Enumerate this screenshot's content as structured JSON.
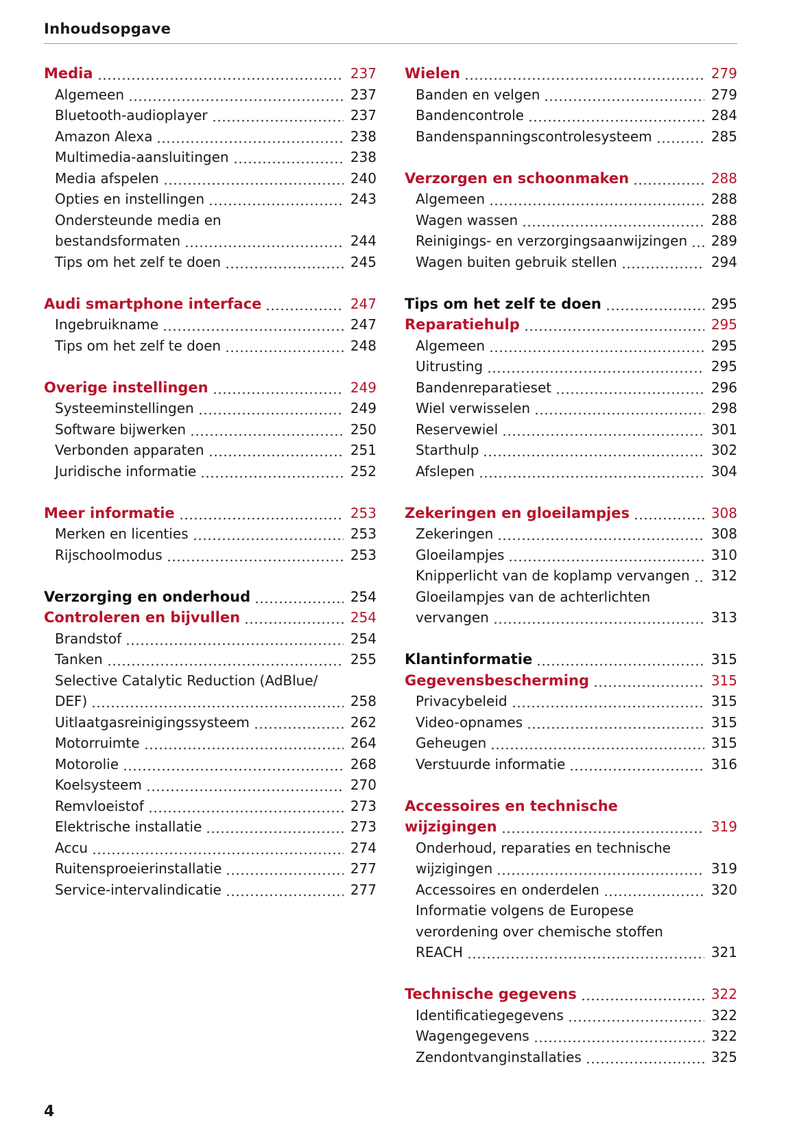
{
  "header": {
    "title": "Inhoudsopgave"
  },
  "columns": [
    {
      "groups": [
        {
          "entries": [
            {
              "style": "red",
              "lines": [
                "Media"
              ],
              "page": 237
            },
            {
              "style": "sub",
              "lines": [
                "Algemeen"
              ],
              "page": 237
            },
            {
              "style": "sub",
              "lines": [
                "Bluetooth-audioplayer"
              ],
              "page": 237
            },
            {
              "style": "sub",
              "lines": [
                "Amazon Alexa"
              ],
              "page": 238
            },
            {
              "style": "sub",
              "lines": [
                "Multimedia-aansluitingen"
              ],
              "page": 238
            },
            {
              "style": "sub",
              "lines": [
                "Media afspelen"
              ],
              "page": 240
            },
            {
              "style": "sub",
              "lines": [
                "Opties en instellingen"
              ],
              "page": 243
            },
            {
              "style": "sub",
              "lines": [
                "Ondersteunde media en",
                "bestandsformaten"
              ],
              "page": 244
            },
            {
              "style": "sub",
              "lines": [
                "Tips om het zelf te doen"
              ],
              "page": 245
            }
          ]
        },
        {
          "entries": [
            {
              "style": "red",
              "lines": [
                "Audi smartphone interface"
              ],
              "page": 247
            },
            {
              "style": "sub",
              "lines": [
                "Ingebruikname"
              ],
              "page": 247
            },
            {
              "style": "sub",
              "lines": [
                "Tips om het zelf te doen"
              ],
              "page": 248
            }
          ]
        },
        {
          "entries": [
            {
              "style": "red",
              "lines": [
                "Overige instellingen"
              ],
              "page": 249
            },
            {
              "style": "sub",
              "lines": [
                "Systeeminstellingen"
              ],
              "page": 249
            },
            {
              "style": "sub",
              "lines": [
                "Software bijwerken"
              ],
              "page": 250
            },
            {
              "style": "sub",
              "lines": [
                "Verbonden apparaten"
              ],
              "page": 251
            },
            {
              "style": "sub",
              "lines": [
                "Juridische informatie"
              ],
              "page": 252
            }
          ]
        },
        {
          "entries": [
            {
              "style": "red",
              "lines": [
                "Meer informatie"
              ],
              "page": 253
            },
            {
              "style": "sub",
              "lines": [
                "Merken en licenties"
              ],
              "page": 253
            },
            {
              "style": "sub",
              "lines": [
                "Rijschoolmodus"
              ],
              "page": 253
            }
          ]
        },
        {
          "entries": [
            {
              "style": "black",
              "lines": [
                "Verzorging en onderhoud"
              ],
              "page": 254
            },
            {
              "style": "red",
              "lines": [
                "Controleren en bijvullen"
              ],
              "page": 254
            },
            {
              "style": "sub",
              "lines": [
                "Brandstof"
              ],
              "page": 254
            },
            {
              "style": "sub",
              "lines": [
                "Tanken"
              ],
              "page": 255
            },
            {
              "style": "sub",
              "lines": [
                "Selective Catalytic Reduction (AdBlue/",
                "DEF)"
              ],
              "page": 258
            },
            {
              "style": "sub",
              "lines": [
                "Uitlaatgasreinigingssysteem"
              ],
              "page": 262
            },
            {
              "style": "sub",
              "lines": [
                "Motorruimte"
              ],
              "page": 264
            },
            {
              "style": "sub",
              "lines": [
                "Motorolie"
              ],
              "page": 268
            },
            {
              "style": "sub",
              "lines": [
                "Koelsysteem"
              ],
              "page": 270
            },
            {
              "style": "sub",
              "lines": [
                "Remvloeistof"
              ],
              "page": 273
            },
            {
              "style": "sub",
              "lines": [
                "Elektrische installatie"
              ],
              "page": 273
            },
            {
              "style": "sub",
              "lines": [
                "Accu"
              ],
              "page": 274
            },
            {
              "style": "sub",
              "lines": [
                "Ruitensproeierinstallatie"
              ],
              "page": 277
            },
            {
              "style": "sub",
              "lines": [
                "Service-intervalindicatie"
              ],
              "page": 277
            }
          ]
        }
      ]
    },
    {
      "groups": [
        {
          "entries": [
            {
              "style": "red",
              "lines": [
                "Wielen"
              ],
              "page": 279
            },
            {
              "style": "sub",
              "lines": [
                "Banden en velgen"
              ],
              "page": 279
            },
            {
              "style": "sub",
              "lines": [
                "Bandencontrole"
              ],
              "page": 284
            },
            {
              "style": "sub",
              "lines": [
                "Bandenspanningscontrolesysteem"
              ],
              "page": 285
            }
          ]
        },
        {
          "entries": [
            {
              "style": "red",
              "lines": [
                "Verzorgen en schoonmaken"
              ],
              "page": 288
            },
            {
              "style": "sub",
              "lines": [
                "Algemeen"
              ],
              "page": 288
            },
            {
              "style": "sub",
              "lines": [
                "Wagen wassen"
              ],
              "page": 288
            },
            {
              "style": "sub",
              "lines": [
                "Reinigings- en verzorgingsaanwijzingen"
              ],
              "page": 289
            },
            {
              "style": "sub",
              "lines": [
                "Wagen buiten gebruik stellen"
              ],
              "page": 294
            }
          ]
        },
        {
          "entries": [
            {
              "style": "black",
              "lines": [
                "Tips om het zelf te doen"
              ],
              "page": 295
            },
            {
              "style": "red",
              "lines": [
                "Reparatiehulp"
              ],
              "page": 295
            },
            {
              "style": "sub",
              "lines": [
                "Algemeen"
              ],
              "page": 295
            },
            {
              "style": "sub",
              "lines": [
                "Uitrusting"
              ],
              "page": 295
            },
            {
              "style": "sub",
              "lines": [
                "Bandenreparatieset"
              ],
              "page": 296
            },
            {
              "style": "sub",
              "lines": [
                "Wiel verwisselen"
              ],
              "page": 298
            },
            {
              "style": "sub",
              "lines": [
                "Reservewiel"
              ],
              "page": 301
            },
            {
              "style": "sub",
              "lines": [
                "Starthulp"
              ],
              "page": 302
            },
            {
              "style": "sub",
              "lines": [
                "Afslepen"
              ],
              "page": 304
            }
          ]
        },
        {
          "entries": [
            {
              "style": "red",
              "lines": [
                "Zekeringen en gloeilampjes"
              ],
              "page": 308
            },
            {
              "style": "sub",
              "lines": [
                "Zekeringen"
              ],
              "page": 308
            },
            {
              "style": "sub",
              "lines": [
                "Gloeilampjes"
              ],
              "page": 310
            },
            {
              "style": "sub",
              "lines": [
                "Knipperlicht van de koplamp vervangen"
              ],
              "page": 312
            },
            {
              "style": "sub",
              "lines": [
                "Gloeilampjes van de achterlichten",
                "vervangen"
              ],
              "page": 313
            }
          ]
        },
        {
          "entries": [
            {
              "style": "black",
              "lines": [
                "Klantinformatie"
              ],
              "page": 315
            },
            {
              "style": "red",
              "lines": [
                "Gegevensbescherming"
              ],
              "page": 315
            },
            {
              "style": "sub",
              "lines": [
                "Privacybeleid"
              ],
              "page": 315
            },
            {
              "style": "sub",
              "lines": [
                "Video-opnames"
              ],
              "page": 315
            },
            {
              "style": "sub",
              "lines": [
                "Geheugen"
              ],
              "page": 315
            },
            {
              "style": "sub",
              "lines": [
                "Verstuurde informatie"
              ],
              "page": 316
            }
          ]
        },
        {
          "entries": [
            {
              "style": "red",
              "lines": [
                "Accessoires en technische",
                "wijzigingen"
              ],
              "page": 319
            },
            {
              "style": "sub",
              "lines": [
                "Onderhoud, reparaties en technische",
                "wijzigingen"
              ],
              "page": 319
            },
            {
              "style": "sub",
              "lines": [
                "Accessoires en onderdelen"
              ],
              "page": 320
            },
            {
              "style": "sub",
              "lines": [
                "Informatie volgens de Europese",
                "verordening over chemische stoffen",
                "REACH"
              ],
              "page": 321
            }
          ]
        },
        {
          "entries": [
            {
              "style": "red",
              "lines": [
                "Technische gegevens"
              ],
              "page": 322
            },
            {
              "style": "sub",
              "lines": [
                "Identificatiegegevens"
              ],
              "page": 322
            },
            {
              "style": "sub",
              "lines": [
                "Wagengegevens"
              ],
              "page": 322
            },
            {
              "style": "sub",
              "lines": [
                "Zendontvanginstallaties"
              ],
              "page": 325
            }
          ]
        }
      ]
    }
  ],
  "footer": {
    "page_number": "4"
  }
}
